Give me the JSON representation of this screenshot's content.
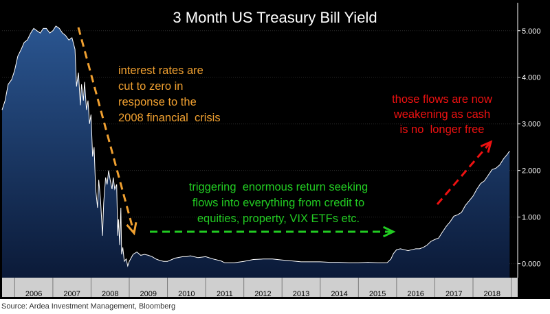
{
  "chart_data": {
    "type": "area",
    "title": "3 Month US Treasury Bill Yield",
    "xlabel": "",
    "ylabel": "",
    "xlim": [
      2005.67,
      2019.17
    ],
    "ylim": [
      -0.3,
      5.6
    ],
    "y_ticks": [
      0.0,
      1.0,
      2.0,
      3.0,
      4.0,
      5.0
    ],
    "y_tick_labels": [
      "0.000",
      "1.000",
      "2.000",
      "3.000",
      "4.000",
      "5.000"
    ],
    "x_tick_labels": [
      "2006",
      "2007",
      "2008",
      "2009",
      "2010",
      "2011",
      "2012",
      "2013",
      "2014",
      "2015",
      "2016",
      "2017",
      "2018"
    ],
    "colors": {
      "background": "#000000",
      "area_fill_top": "#2a5590",
      "area_fill_bottom": "#0b1a38",
      "line": "#ffffff",
      "axis_band": "#cfcfcf",
      "orange": "#f0a030",
      "green": "#22cc22",
      "red": "#ee1111"
    },
    "series": [
      {
        "name": "3 Month US Treasury Bill Yield",
        "x": [
          2005.67,
          2005.75,
          2005.83,
          2005.92,
          2006.0,
          2006.08,
          2006.17,
          2006.25,
          2006.33,
          2006.42,
          2006.5,
          2006.58,
          2006.67,
          2006.75,
          2006.83,
          2006.92,
          2007.0,
          2007.08,
          2007.17,
          2007.25,
          2007.33,
          2007.42,
          2007.5,
          2007.58,
          2007.62,
          2007.67,
          2007.72,
          2007.75,
          2007.8,
          2007.83,
          2007.88,
          2007.92,
          2007.96,
          2008.0,
          2008.04,
          2008.08,
          2008.12,
          2008.17,
          2008.2,
          2008.25,
          2008.3,
          2008.33,
          2008.38,
          2008.42,
          2008.46,
          2008.5,
          2008.55,
          2008.58,
          2008.62,
          2008.67,
          2008.7,
          2008.72,
          2008.75,
          2008.78,
          2008.8,
          2008.83,
          2008.87,
          2008.92,
          2008.96,
          2009.0,
          2009.1,
          2009.2,
          2009.3,
          2009.4,
          2009.5,
          2009.6,
          2009.7,
          2009.8,
          2009.9,
          2010.0,
          2010.2,
          2010.4,
          2010.5,
          2010.6,
          2010.8,
          2011.0,
          2011.2,
          2011.4,
          2011.5,
          2011.6,
          2011.75,
          2012.0,
          2012.25,
          2012.5,
          2012.75,
          2013.0,
          2013.25,
          2013.5,
          2013.75,
          2014.0,
          2014.25,
          2014.5,
          2014.75,
          2015.0,
          2015.25,
          2015.5,
          2015.75,
          2015.85,
          2015.92,
          2016.0,
          2016.1,
          2016.2,
          2016.3,
          2016.4,
          2016.5,
          2016.6,
          2016.7,
          2016.8,
          2016.9,
          2017.0,
          2017.1,
          2017.2,
          2017.3,
          2017.4,
          2017.5,
          2017.6,
          2017.7,
          2017.8,
          2017.9,
          2018.0,
          2018.1,
          2018.2,
          2018.3,
          2018.4,
          2018.5,
          2018.6,
          2018.7,
          2018.8,
          2018.9,
          2018.96
        ],
        "values": [
          3.3,
          3.5,
          3.85,
          3.95,
          4.15,
          4.45,
          4.6,
          4.75,
          4.8,
          4.95,
          5.05,
          5.0,
          4.95,
          5.05,
          5.05,
          4.95,
          5.0,
          5.1,
          5.05,
          4.95,
          4.9,
          4.8,
          4.85,
          4.6,
          3.8,
          4.1,
          3.4,
          3.85,
          3.5,
          3.9,
          3.3,
          3.5,
          3.0,
          3.2,
          2.3,
          2.5,
          1.6,
          1.2,
          1.8,
          1.35,
          0.6,
          1.3,
          1.85,
          1.7,
          2.0,
          1.8,
          1.6,
          1.85,
          1.6,
          1.7,
          0.6,
          0.95,
          0.4,
          1.2,
          0.2,
          0.35,
          0.05,
          0.1,
          -0.05,
          0.05,
          0.2,
          0.25,
          0.18,
          0.2,
          0.18,
          0.15,
          0.1,
          0.07,
          0.05,
          0.05,
          0.12,
          0.15,
          0.15,
          0.17,
          0.13,
          0.15,
          0.1,
          0.06,
          0.02,
          0.02,
          0.02,
          0.05,
          0.09,
          0.1,
          0.1,
          0.08,
          0.06,
          0.04,
          0.04,
          0.04,
          0.03,
          0.03,
          0.02,
          0.02,
          0.03,
          0.02,
          0.02,
          0.1,
          0.22,
          0.3,
          0.32,
          0.3,
          0.28,
          0.3,
          0.32,
          0.32,
          0.35,
          0.4,
          0.48,
          0.52,
          0.55,
          0.68,
          0.8,
          0.9,
          1.02,
          1.05,
          1.1,
          1.25,
          1.35,
          1.45,
          1.6,
          1.72,
          1.78,
          1.9,
          2.02,
          2.05,
          2.12,
          2.25,
          2.35,
          2.42
        ]
      }
    ],
    "annotations": [
      {
        "name": "orange-note",
        "color": "orange",
        "lines": [
          "interest rates are",
          "cut to zero in",
          "response to the",
          "2008 financial  crisis"
        ]
      },
      {
        "name": "green-note",
        "color": "green",
        "lines": [
          "triggering  enormous return seeking",
          "flows into everything from credit to",
          "equities, property, VIX ETFs etc."
        ]
      },
      {
        "name": "red-note",
        "color": "red",
        "lines": [
          "those flows are now",
          "weakening as cash",
          "is no  longer free"
        ]
      }
    ]
  },
  "source": "Source: Ardea Investment Management, Bloomberg"
}
